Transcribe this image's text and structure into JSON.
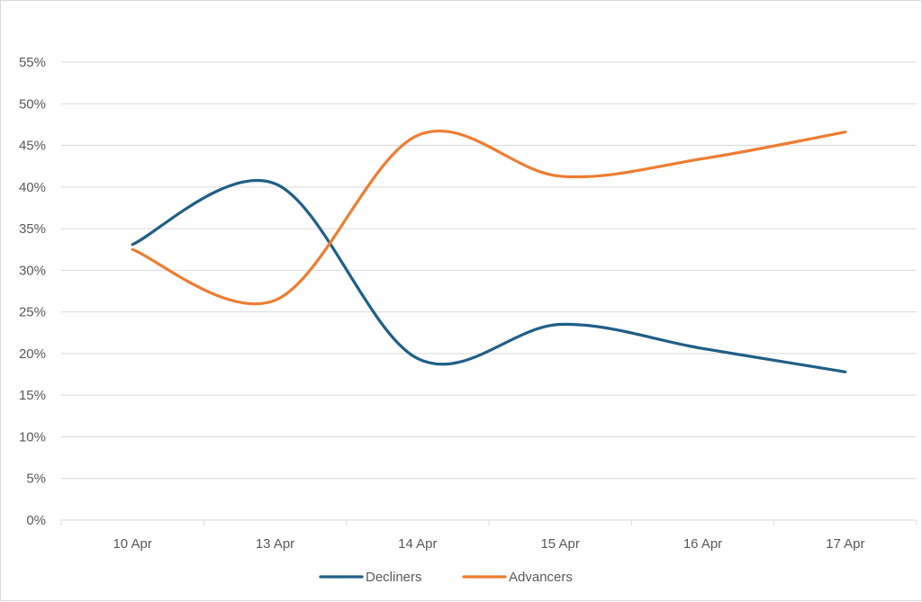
{
  "chart_data": {
    "type": "line",
    "smooth": true,
    "categories": [
      "10 Apr",
      "13 Apr",
      "14 Apr",
      "15 Apr",
      "16 Apr",
      "17 Apr"
    ],
    "series": [
      {
        "name": "Decliners",
        "color": "#1f5f86",
        "values": [
          0.331,
          0.404,
          0.194,
          0.235,
          0.206,
          0.178
        ]
      },
      {
        "name": "Advancers",
        "color": "#ed7d31",
        "values": [
          0.325,
          0.264,
          0.462,
          0.413,
          0.434,
          0.466
        ]
      }
    ],
    "y_ticks": [
      "0%",
      "5%",
      "10%",
      "15%",
      "20%",
      "25%",
      "30%",
      "35%",
      "40%",
      "45%",
      "50%",
      "55%"
    ],
    "ylim": [
      0,
      0.55
    ],
    "ytick_step": 0.05,
    "grid": true,
    "legend_position": "bottom",
    "title": "",
    "xlabel": "",
    "ylabel": ""
  }
}
